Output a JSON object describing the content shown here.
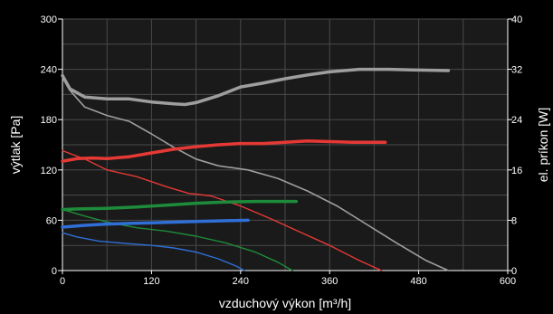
{
  "chart_data": {
    "type": "line",
    "title": "",
    "xlabel": "vzduchový výkon [m³/h]",
    "ylabel": "výtlak [Pa]",
    "y2label": "el. príkon [W]",
    "xlim": [
      0,
      600
    ],
    "ylim": [
      0,
      300
    ],
    "y2lim": [
      0,
      40
    ],
    "xticks": [
      0,
      120,
      240,
      360,
      480,
      600
    ],
    "yticks": [
      0,
      60,
      120,
      180,
      240,
      300
    ],
    "y2ticks": [
      0,
      8,
      16,
      24,
      32,
      40
    ],
    "grid": true,
    "colors": {
      "background": "#000000",
      "plot_background": "#1a1a1a",
      "grid": "#4a4a4a",
      "axis": "#ffffff"
    },
    "series": [
      {
        "kind": "pressure",
        "color": "#9e9e9e",
        "width": 1.6,
        "axis": "y",
        "points": [
          [
            0,
            230
          ],
          [
            10,
            215
          ],
          [
            30,
            195
          ],
          [
            60,
            185
          ],
          [
            90,
            178
          ],
          [
            120,
            163
          ],
          [
            150,
            147
          ],
          [
            180,
            133
          ],
          [
            210,
            125
          ],
          [
            250,
            120
          ],
          [
            290,
            110
          ],
          [
            330,
            95
          ],
          [
            370,
            77
          ],
          [
            410,
            55
          ],
          [
            450,
            33
          ],
          [
            490,
            12
          ],
          [
            520,
            0
          ]
        ]
      },
      {
        "kind": "pressure",
        "color": "#e53935",
        "width": 1.4,
        "axis": "y",
        "points": [
          [
            0,
            143
          ],
          [
            30,
            133
          ],
          [
            60,
            120
          ],
          [
            100,
            112
          ],
          [
            140,
            100
          ],
          [
            170,
            92
          ],
          [
            200,
            89
          ],
          [
            240,
            77
          ],
          [
            280,
            62
          ],
          [
            320,
            46
          ],
          [
            360,
            30
          ],
          [
            400,
            12
          ],
          [
            430,
            0
          ]
        ]
      },
      {
        "kind": "pressure",
        "color": "#1e8c3a",
        "width": 1.4,
        "axis": "y",
        "points": [
          [
            0,
            73
          ],
          [
            30,
            65
          ],
          [
            60,
            58
          ],
          [
            100,
            51
          ],
          [
            140,
            47
          ],
          [
            180,
            41
          ],
          [
            220,
            33
          ],
          [
            260,
            22
          ],
          [
            290,
            10
          ],
          [
            310,
            0
          ]
        ]
      },
      {
        "kind": "pressure",
        "color": "#2f6fd6",
        "width": 1.4,
        "axis": "y",
        "points": [
          [
            0,
            45
          ],
          [
            20,
            40
          ],
          [
            50,
            35
          ],
          [
            90,
            32
          ],
          [
            120,
            30
          ],
          [
            150,
            27
          ],
          [
            180,
            22
          ],
          [
            210,
            14
          ],
          [
            235,
            5
          ],
          [
            245,
            0
          ]
        ]
      },
      {
        "kind": "power",
        "color": "#9e9e9e",
        "width": 3.5,
        "axis": "y2",
        "points": [
          [
            0,
            31
          ],
          [
            10,
            28.9
          ],
          [
            30,
            27.6
          ],
          [
            60,
            27.3
          ],
          [
            90,
            27.3
          ],
          [
            120,
            26.8
          ],
          [
            150,
            26.5
          ],
          [
            165,
            26.4
          ],
          [
            180,
            26.7
          ],
          [
            210,
            27.8
          ],
          [
            240,
            29.2
          ],
          [
            270,
            29.8
          ],
          [
            300,
            30.5
          ],
          [
            330,
            31.1
          ],
          [
            360,
            31.6
          ],
          [
            400,
            32
          ],
          [
            440,
            32
          ],
          [
            470,
            31.9
          ],
          [
            520,
            31.8
          ]
        ]
      },
      {
        "kind": "power",
        "color": "#e53935",
        "width": 3.5,
        "axis": "y2",
        "points": [
          [
            0,
            17.4
          ],
          [
            20,
            17.8
          ],
          [
            40,
            17.9
          ],
          [
            60,
            17.8
          ],
          [
            90,
            18.1
          ],
          [
            120,
            18.7
          ],
          [
            150,
            19.3
          ],
          [
            180,
            19.7
          ],
          [
            210,
            20
          ],
          [
            240,
            20.2
          ],
          [
            270,
            20.2
          ],
          [
            300,
            20.4
          ],
          [
            330,
            20.6
          ],
          [
            360,
            20.5
          ],
          [
            390,
            20.4
          ],
          [
            435,
            20.4
          ]
        ]
      },
      {
        "kind": "power",
        "color": "#1e8c3a",
        "width": 3.5,
        "axis": "y2",
        "points": [
          [
            0,
            9.7
          ],
          [
            20,
            9.8
          ],
          [
            60,
            9.9
          ],
          [
            100,
            10.1
          ],
          [
            140,
            10.4
          ],
          [
            180,
            10.7
          ],
          [
            220,
            10.9
          ],
          [
            260,
            11
          ],
          [
            315,
            11
          ]
        ]
      },
      {
        "kind": "power",
        "color": "#2f6fd6",
        "width": 3.5,
        "axis": "y2",
        "points": [
          [
            0,
            6.9
          ],
          [
            30,
            7.2
          ],
          [
            60,
            7.4
          ],
          [
            90,
            7.5
          ],
          [
            120,
            7.6
          ],
          [
            150,
            7.7
          ],
          [
            180,
            7.8
          ],
          [
            210,
            7.9
          ],
          [
            250,
            8
          ]
        ]
      }
    ]
  }
}
